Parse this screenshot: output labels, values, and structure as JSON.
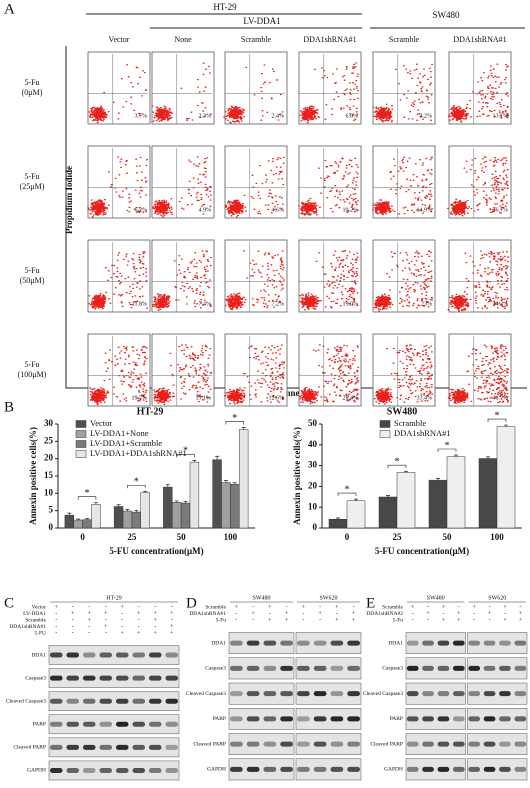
{
  "panel_labels": [
    "A",
    "B",
    "C",
    "D",
    "E"
  ],
  "flow": {
    "header_ht29": "HT-29",
    "header_lv": "LV-DDA1",
    "header_sw480": "SW480",
    "columns": [
      "Vector",
      "None",
      "Scramble",
      "DDA1shRNA#1",
      "Scramble",
      "DDA1shRNA#1"
    ],
    "y_label": "Propidium Iodide",
    "x_label": "Annexin-V",
    "rows": [
      {
        "label": [
          "5-Fu",
          "(0μM)"
        ],
        "values": [
          "3.7%",
          "2.3%",
          "2.4%",
          "6.8%",
          "4.2%",
          "13.1%"
        ]
      },
      {
        "label": [
          "5-Fu",
          "(25μM)"
        ],
        "values": [
          "6.2%",
          "4.9%",
          "4.6%",
          "10.2%",
          "14.9%",
          "26.7%"
        ]
      },
      {
        "label": [
          "5-Fu",
          "(50μM)"
        ],
        "values": [
          "11.8%",
          "7.4%",
          "7.2%",
          "19.0%",
          "23%",
          "34.3%"
        ]
      },
      {
        "label": [
          "5-Fu",
          "(100μM)"
        ],
        "values": [
          "19.7%",
          "13.1%",
          "12.6%",
          "28.4%",
          "33.4%",
          "48.7%"
        ]
      }
    ]
  },
  "chart_data": [
    {
      "type": "bar",
      "title": "HT-29",
      "x_label": "5-FU concentration(μM)",
      "y_label": "Annexin positive cells(%)",
      "categories": [
        "0",
        "25",
        "50",
        "100"
      ],
      "ylim": [
        0,
        30
      ],
      "yticks": [
        0,
        5,
        10,
        15,
        20,
        25,
        30
      ],
      "annotation": "*",
      "series": [
        {
          "name": "Vector",
          "color": "#505050",
          "values": [
            3.7,
            6.2,
            11.8,
            19.7
          ],
          "errors": [
            0.6,
            0.5,
            0.8,
            1.0
          ]
        },
        {
          "name": "LV-DDA1+None",
          "color": "#a0a0a0",
          "values": [
            2.3,
            4.9,
            7.4,
            13.1
          ],
          "errors": [
            0.3,
            0.5,
            0.4,
            0.6
          ]
        },
        {
          "name": "LV-DDA1+Scramble",
          "color": "#7a7a7a",
          "values": [
            2.4,
            4.6,
            7.2,
            12.6
          ],
          "errors": [
            0.3,
            0.5,
            0.5,
            0.5
          ]
        },
        {
          "name": "LV-DDA1+DDA1shRNA#1",
          "color": "#e6e6e6",
          "values": [
            6.8,
            10.2,
            19.0,
            28.4
          ],
          "errors": [
            0.5,
            0.4,
            0.5,
            0.6
          ]
        }
      ]
    },
    {
      "type": "bar",
      "title": "SW480",
      "x_label": "5-FU concentration(μM)",
      "y_label": "Annexin positive cells(%)",
      "categories": [
        "0",
        "25",
        "50",
        "100"
      ],
      "ylim": [
        0,
        50
      ],
      "yticks": [
        0,
        10,
        20,
        30,
        40,
        50
      ],
      "annotation": "*",
      "series": [
        {
          "name": "Scramble",
          "color": "#484848",
          "values": [
            4.2,
            14.9,
            23,
            33.4
          ],
          "errors": [
            0.6,
            0.8,
            0.8,
            0.8
          ]
        },
        {
          "name": "DDA1shRNA#1",
          "color": "#efefef",
          "values": [
            13.1,
            26.7,
            34.3,
            48.7
          ],
          "errors": [
            0.8,
            0.6,
            0.8,
            0.8
          ]
        }
      ]
    }
  ],
  "blots": [
    {
      "groups": [
        "HT-29"
      ],
      "conditions": [
        {
          "name": "Vector",
          "signs": [
            "+",
            "-",
            "-",
            "-",
            "+",
            "-",
            "-",
            "-"
          ]
        },
        {
          "name": "LV-DDA1",
          "signs": [
            "-",
            "+",
            "+",
            "+",
            "-",
            "+",
            "+",
            "+"
          ]
        },
        {
          "name": "Scramble",
          "signs": [
            "-",
            "-",
            "+",
            "-",
            "-",
            "-",
            "+",
            "-"
          ]
        },
        {
          "name": "DDA1shRNA#1",
          "signs": [
            "-",
            "-",
            "-",
            "+",
            "-",
            "-",
            "-",
            "+"
          ]
        },
        {
          "name": "5-FU",
          "signs": [
            "-",
            "-",
            "-",
            "-",
            "+",
            "+",
            "+",
            "+"
          ]
        }
      ],
      "bands": [
        "DDA1",
        "Caspase3",
        "Cleaved Caspase3",
        "PARP",
        "Cleaved PARP",
        "GAPDH"
      ]
    },
    {
      "groups": [
        "SW480",
        "SW620"
      ],
      "conditions": [
        {
          "name": "Scramble",
          "signs": [
            "+",
            "-",
            "+",
            "-",
            "+",
            "-",
            "+",
            "-"
          ]
        },
        {
          "name": "DDA1shRNA#1",
          "signs": [
            "-",
            "+",
            "-",
            "+",
            "-",
            "+",
            "-",
            "+"
          ]
        },
        {
          "name": "5-Fu",
          "signs": [
            "-",
            "-",
            "+",
            "+",
            "-",
            "-",
            "+",
            "+"
          ]
        }
      ],
      "bands": [
        "DDA1",
        "Caspase3",
        "Cleaved Caspase3",
        "PARP",
        "Cleaved PARP",
        "GAPDH"
      ]
    },
    {
      "groups": [
        "SW480",
        "SW620"
      ],
      "conditions": [
        {
          "name": "Scramble",
          "signs": [
            "+",
            "-",
            "+",
            "-",
            "+",
            "-",
            "+",
            "-"
          ]
        },
        {
          "name": "DDA1shRNA#2",
          "signs": [
            "-",
            "+",
            "-",
            "+",
            "-",
            "+",
            "-",
            "+"
          ]
        },
        {
          "name": "5-Fu",
          "signs": [
            "-",
            "-",
            "+",
            "+",
            "-",
            "-",
            "+",
            "+"
          ]
        }
      ],
      "bands": [
        "DDA1",
        "Caspase3",
        "Cleaved Caspase3",
        "PARP",
        "Cleaved PARP",
        "GAPDH"
      ]
    }
  ]
}
